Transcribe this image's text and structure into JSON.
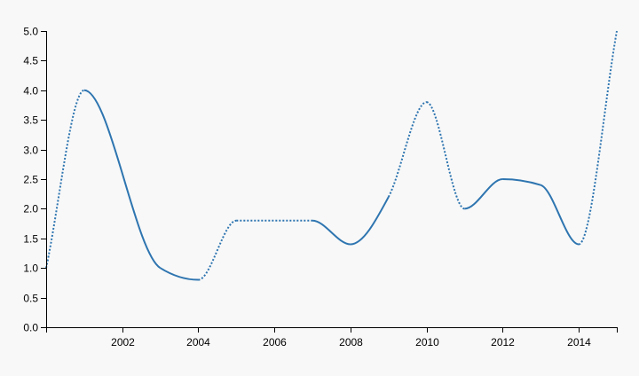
{
  "chart_data": {
    "type": "line",
    "title": "",
    "xlabel": "",
    "ylabel": "",
    "x_ticks": [
      2002,
      2004,
      2006,
      2008,
      2010,
      2012,
      2014
    ],
    "y_ticks": [
      "0.0",
      "0.5",
      "1.0",
      "1.5",
      "2.0",
      "2.5",
      "3.0",
      "3.5",
      "4.0",
      "4.5",
      "5.0"
    ],
    "xlim": [
      2000,
      2015
    ],
    "ylim": [
      0,
      5
    ],
    "grid": false,
    "line_color": "#2e75b0",
    "x": [
      2000,
      2001,
      2003,
      2004,
      2005,
      2007,
      2008,
      2009,
      2010,
      2011,
      2012,
      2013,
      2014,
      2015
    ],
    "values": [
      1.0,
      4.0,
      1.0,
      0.8,
      1.8,
      1.8,
      1.4,
      2.2,
      3.8,
      2.0,
      2.5,
      2.4,
      1.4,
      5.0
    ],
    "segment_styles": [
      "dashed",
      "solid",
      "solid",
      "dashed",
      "dashed",
      "solid",
      "solid",
      "dashed",
      "dashed",
      "solid",
      "solid",
      "solid",
      "dashed"
    ]
  }
}
